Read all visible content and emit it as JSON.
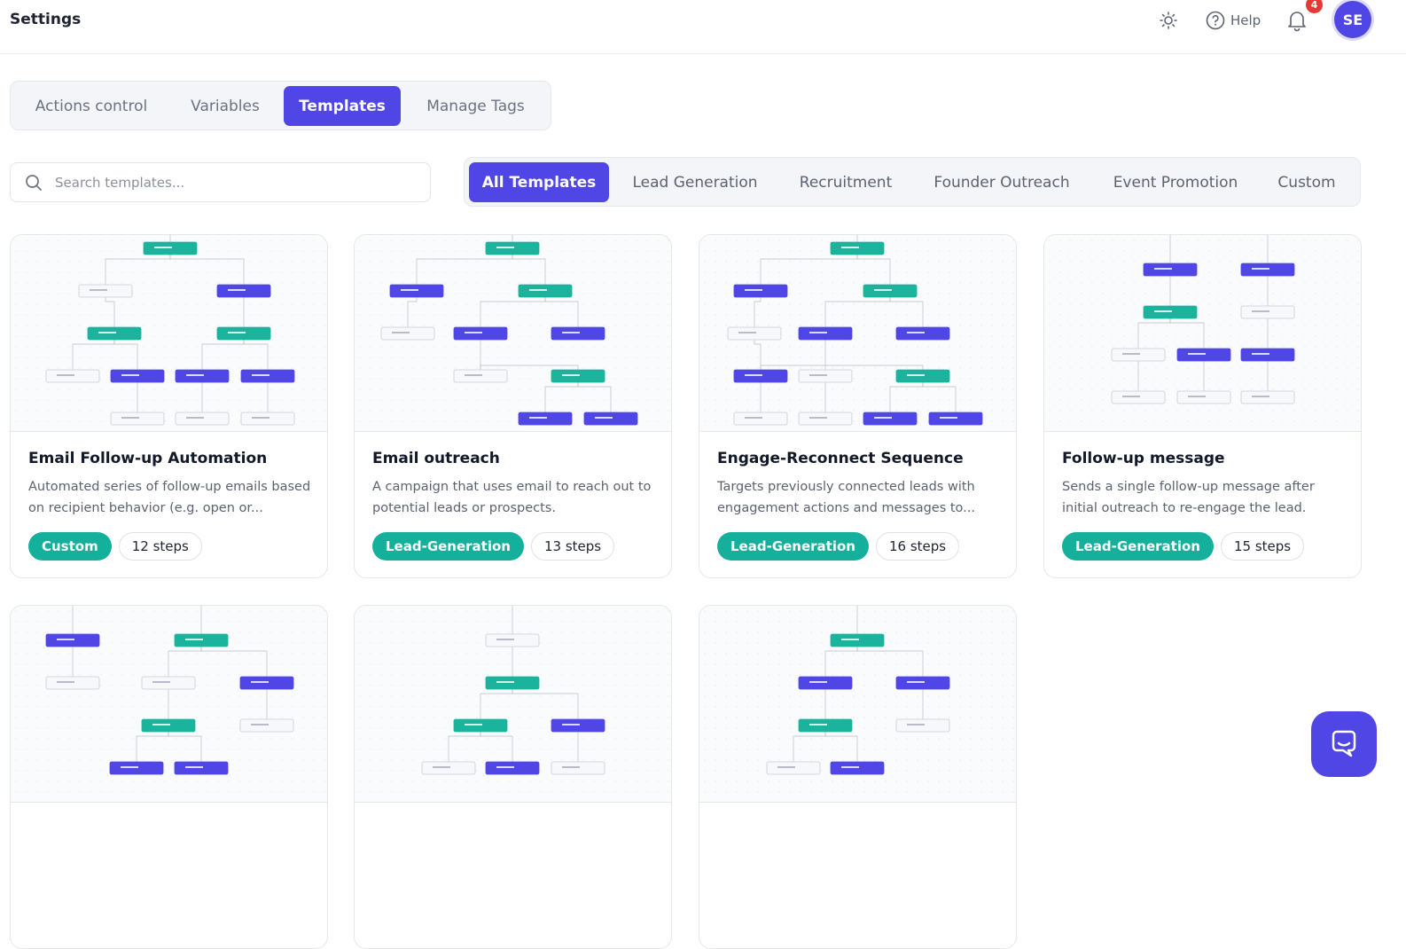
{
  "header": {
    "title": "Settings",
    "help": "Help",
    "notifications": 4,
    "avatar": "SE"
  },
  "tabs": [
    "Actions control",
    "Variables",
    "Templates",
    "Manage Tags"
  ],
  "search_placeholder": "Search templates...",
  "filters": [
    "All Templates",
    "Lead Generation",
    "Recruitment",
    "Founder Outreach",
    "Event Promotion",
    "Custom"
  ],
  "templates": [
    {
      "title": "Email Follow-up Automation",
      "description": "Automated series of follow-up emails based on recipient behavior (e.g. open or...",
      "tag": "Custom",
      "steps": "12 steps"
    },
    {
      "title": "Email outreach",
      "description": "A campaign that uses email to reach out to potential leads or prospects.",
      "tag": "Lead-Generation",
      "steps": "13 steps"
    },
    {
      "title": "Engage-Reconnect Sequence",
      "description": "Targets previously connected leads with engagement actions and messages to...",
      "tag": "Lead-Generation",
      "steps": "16 steps"
    },
    {
      "title": "Follow-up message",
      "description": "Sends a single follow-up message after initial outreach to re-engage the lead.",
      "tag": "Lead-Generation",
      "steps": "15 steps"
    }
  ]
}
